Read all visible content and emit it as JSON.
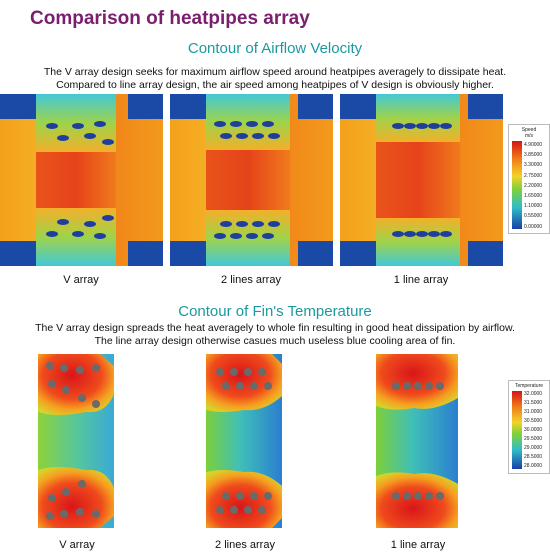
{
  "page": {
    "title": "Comparison of heatpipes array"
  },
  "airflow": {
    "heading": "Contour of Airflow Velocity",
    "description_line1": "The V array design seeks for maximum airflow speed around heatpipes averagely to dissipate heat.",
    "description_line2": "Compared to line array design, the air speed among heatpipes of V design is obviously higher.",
    "labels": [
      "V array",
      "2 lines array",
      "1 line array"
    ],
    "legend": {
      "title_line1": "Speed",
      "title_line2": "m/s",
      "values": [
        "4.90000",
        "3.85000",
        "3.30000",
        "2.75000",
        "2.20000",
        "1.65000",
        "1.10000",
        "0.55000",
        "0.00000"
      ]
    }
  },
  "fin_temperature": {
    "heading": "Contour of Fin's Temperature",
    "description_line1": "The V array design spreads the heat averagely to whole fin resulting in good heat dissipation by airflow.",
    "description_line2": "The line array design otherwise casues much useless blue cooling area of fin.",
    "labels": [
      "V array",
      "2 lines array",
      "1 line array"
    ],
    "legend": {
      "title": "Temperature",
      "values": [
        "32.0000",
        "31.5000",
        "31.0000",
        "30.5000",
        "30.0000",
        "29.5000",
        "29.0000",
        "28.5000",
        "28.0000"
      ]
    }
  },
  "colors": {
    "title": "#7a1e6e",
    "heading": "#1a9aa0",
    "hot": "#e3261a",
    "warm": "#f08a1a",
    "mid": "#9ccf2a",
    "cool": "#2fb3c8",
    "cold": "#1e4fa8"
  }
}
